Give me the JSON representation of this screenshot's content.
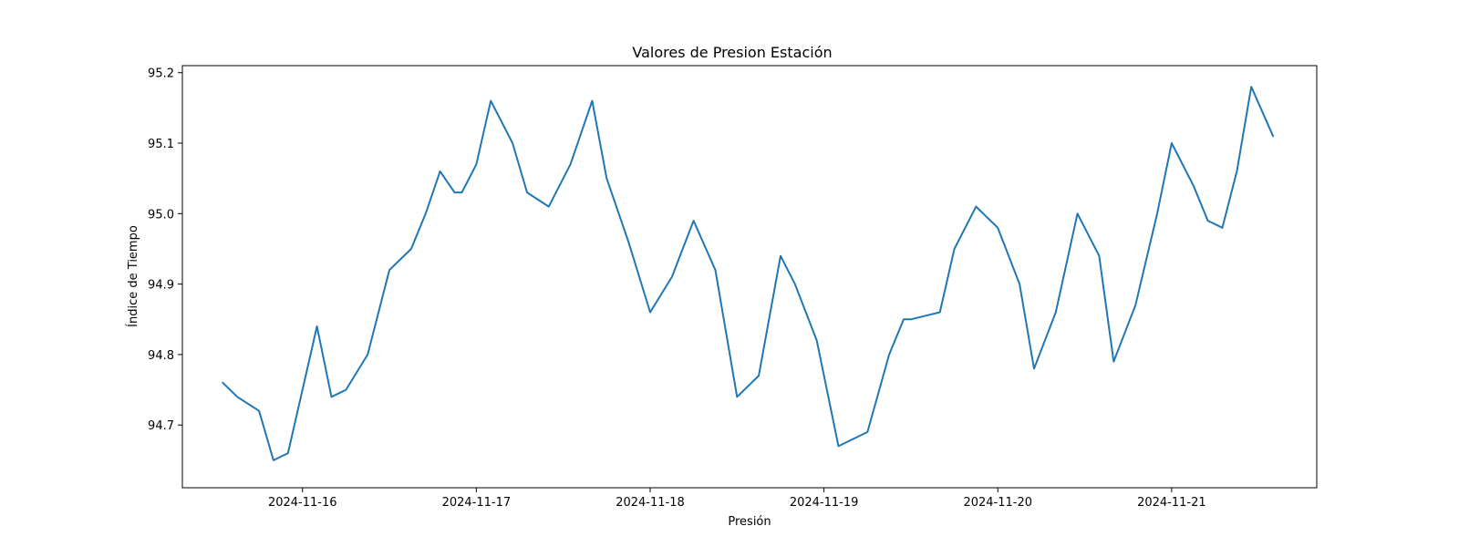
{
  "chart_data": {
    "type": "line",
    "title": "Valores de Presion Estación",
    "xlabel": "Presión",
    "ylabel": "Índice de Tiempo",
    "x_ticks": [
      "2024-11-16",
      "2024-11-17",
      "2024-11-18",
      "2024-11-19",
      "2024-11-20",
      "2024-11-21"
    ],
    "y_ticks": [
      "94.7",
      "94.8",
      "94.9",
      "95.0",
      "95.1",
      "95.2"
    ],
    "xlim": [
      "2024-11-15T07:25",
      "2024-11-21T20:02"
    ],
    "ylim": [
      94.611,
      95.21
    ],
    "grid": false,
    "colors": {
      "series": "#1f77b4"
    },
    "series": [
      {
        "x": [
          "2024-11-15T13:00",
          "2024-11-15T15:00",
          "2024-11-15T18:00",
          "2024-11-15T20:00",
          "2024-11-15T22:00",
          "2024-11-16T00:00",
          "2024-11-16T02:00",
          "2024-11-16T04:00",
          "2024-11-16T06:00",
          "2024-11-16T09:00",
          "2024-11-16T12:00",
          "2024-11-16T15:00",
          "2024-11-16T17:00",
          "2024-11-16T19:00",
          "2024-11-16T21:00",
          "2024-11-16T22:00",
          "2024-11-17T00:00",
          "2024-11-17T02:00",
          "2024-11-17T05:00",
          "2024-11-17T07:00",
          "2024-11-17T10:00",
          "2024-11-17T13:00",
          "2024-11-17T16:00",
          "2024-11-17T18:00",
          "2024-11-17T21:00",
          "2024-11-18T00:00",
          "2024-11-18T03:00",
          "2024-11-18T06:00",
          "2024-11-18T09:00",
          "2024-11-18T12:00",
          "2024-11-18T15:00",
          "2024-11-18T18:00",
          "2024-11-18T20:00",
          "2024-11-18T23:00",
          "2024-11-19T02:00",
          "2024-11-19T06:00",
          "2024-11-19T09:00",
          "2024-11-19T11:00",
          "2024-11-19T12:00",
          "2024-11-19T16:00",
          "2024-11-19T18:00",
          "2024-11-19T21:00",
          "2024-11-20T00:00",
          "2024-11-20T03:00",
          "2024-11-20T05:00",
          "2024-11-20T08:00",
          "2024-11-20T11:00",
          "2024-11-20T14:00",
          "2024-11-20T16:00",
          "2024-11-20T19:00",
          "2024-11-20T22:00",
          "2024-11-21T00:00",
          "2024-11-21T03:00",
          "2024-11-21T05:00",
          "2024-11-21T07:00",
          "2024-11-21T09:00",
          "2024-11-21T11:00",
          "2024-11-21T14:00"
        ],
        "y": [
          94.76,
          94.74,
          94.72,
          94.65,
          94.66,
          94.75,
          94.84,
          94.74,
          94.75,
          94.8,
          94.92,
          94.95,
          95.0,
          95.06,
          95.03,
          95.03,
          95.07,
          95.16,
          95.1,
          95.03,
          95.01,
          95.07,
          95.16,
          95.05,
          94.96,
          94.86,
          94.91,
          94.99,
          94.92,
          94.74,
          94.77,
          94.94,
          94.9,
          94.82,
          94.67,
          94.69,
          94.8,
          94.85,
          94.85,
          94.86,
          94.95,
          95.01,
          94.98,
          94.9,
          94.78,
          94.86,
          95.0,
          94.94,
          94.79,
          94.87,
          95.0,
          95.1,
          95.04,
          94.99,
          94.98,
          95.06,
          95.18,
          95.11
        ]
      }
    ]
  }
}
